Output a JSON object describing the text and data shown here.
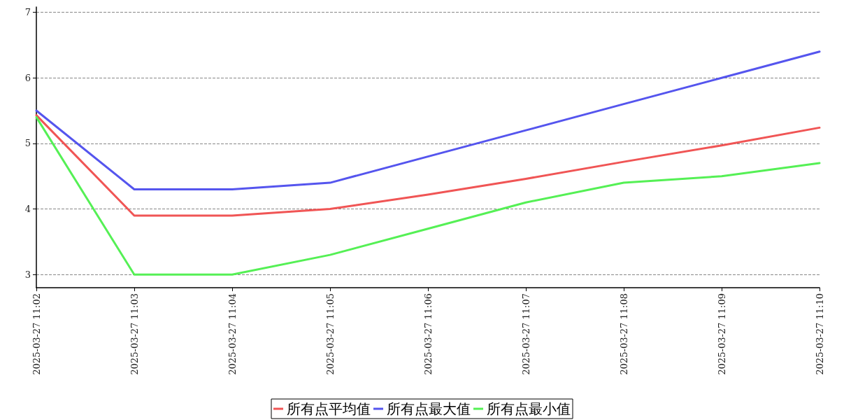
{
  "chart_data": {
    "type": "line",
    "categories": [
      "2025-03-27 11:02",
      "2025-03-27 11:03",
      "2025-03-27 11:04",
      "2025-03-27 11:05",
      "2025-03-27 11:06",
      "2025-03-27 11:07",
      "2025-03-27 11:08",
      "2025-03-27 11:09",
      "2025-03-27 11:10"
    ],
    "series": [
      {
        "name": "所有点平均值",
        "color": "#f05555",
        "values": [
          5.43,
          3.9,
          3.9,
          4.0,
          4.22,
          4.46,
          4.72,
          4.97,
          5.24
        ]
      },
      {
        "name": "所有点最大值",
        "color": "#5555ee",
        "values": [
          5.5,
          4.3,
          4.3,
          4.4,
          4.8,
          5.2,
          5.6,
          6.0,
          6.4
        ]
      },
      {
        "name": "所有点最小值",
        "color": "#55f055",
        "values": [
          5.4,
          3.0,
          3.0,
          3.3,
          3.7,
          4.1,
          4.4,
          4.5,
          4.7
        ]
      }
    ],
    "ylim": [
      2.8,
      7.08
    ],
    "yticks": [
      3,
      4,
      5,
      6,
      7
    ],
    "grid": "y",
    "legend": "bottom",
    "marker": "none",
    "line_style": "solid"
  }
}
